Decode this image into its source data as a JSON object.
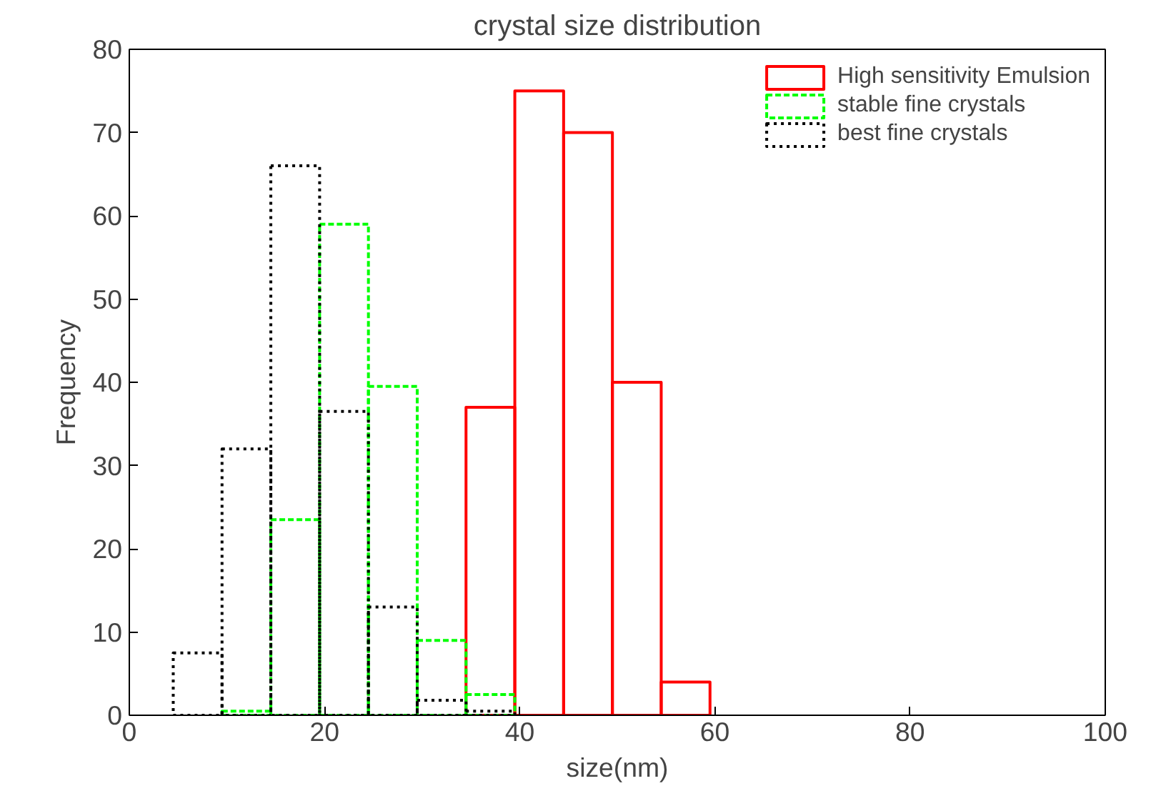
{
  "chart_data": {
    "type": "histogram",
    "title": "crystal size distribution",
    "xlabel": "size(nm)",
    "ylabel": "Frequency",
    "bins": [
      4.5,
      9.5,
      14.5,
      19.5,
      24.5,
      29.5,
      34.5,
      39.5,
      44.5,
      49.5,
      54.5,
      59.5
    ],
    "series": [
      {
        "name": "High sensitivity Emulsion",
        "color": "#ff0000",
        "line_style": "solid",
        "values": [
          null,
          null,
          null,
          null,
          null,
          null,
          37,
          75,
          70,
          40,
          4
        ]
      },
      {
        "name": "stable fine crystals",
        "color": "#00ff00",
        "line_style": "dashed",
        "values": [
          null,
          0.5,
          23.5,
          59,
          39.5,
          9,
          2.5,
          null,
          null,
          null,
          null
        ]
      },
      {
        "name": "best fine crystals",
        "color": "#000000",
        "line_style": "dotted",
        "values": [
          7.5,
          32,
          66,
          36.5,
          13,
          1.8,
          0.5,
          null,
          null,
          null,
          null
        ]
      }
    ],
    "xlim": [
      0,
      100
    ],
    "ylim": [
      0,
      80
    ],
    "xticks": [
      0,
      20,
      40,
      60,
      80,
      100
    ],
    "yticks": [
      0,
      10,
      20,
      30,
      40,
      50,
      60,
      70,
      80
    ],
    "grid": false,
    "legend": "top right"
  }
}
